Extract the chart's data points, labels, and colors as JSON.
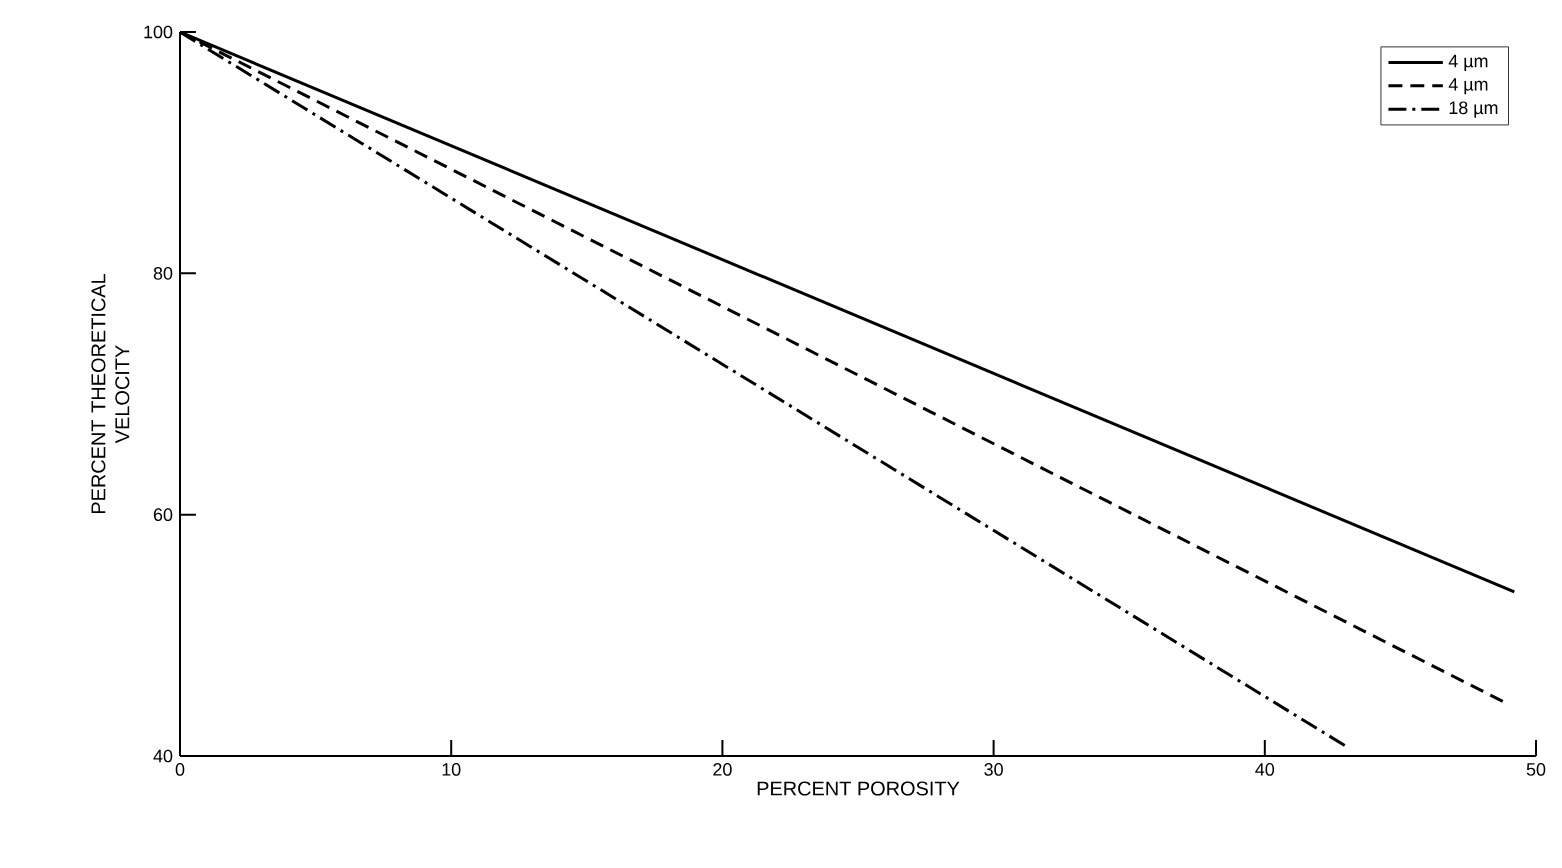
{
  "chart_data": {
    "type": "line",
    "xlabel": "PERCENT POROSITY",
    "ylabel": "PERCENT THEORETICAL VELOCITY",
    "xlim": [
      0,
      50
    ],
    "ylim": [
      40,
      100
    ],
    "xticks": [
      0,
      10,
      20,
      30,
      40,
      50
    ],
    "yticks": [
      40,
      60,
      80,
      100
    ],
    "legend": "top right",
    "grid": false,
    "marker": "none",
    "color": "#000000",
    "series": [
      {
        "name": "4 µm",
        "line_style": "solid",
        "x": [
          0,
          49.2
        ],
        "values": [
          100,
          53.6
        ]
      },
      {
        "name": "4 µm",
        "line_style": "dashed",
        "x": [
          0,
          48.8
        ],
        "values": [
          100,
          44.5
        ]
      },
      {
        "name": "18 µm",
        "line_style": "dashdot",
        "x": [
          0,
          43.0
        ],
        "values": [
          100,
          40.8
        ]
      }
    ]
  }
}
